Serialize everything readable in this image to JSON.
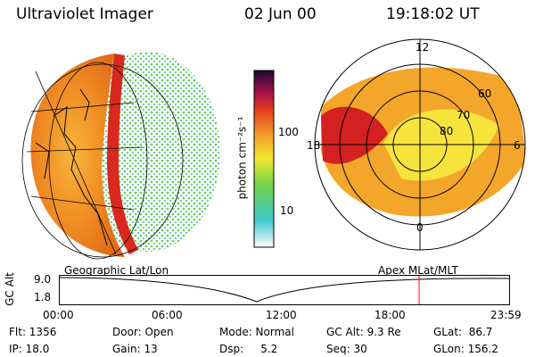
{
  "header": {
    "instrument": "Ultraviolet Imager",
    "date": "02 Jun 00",
    "time": "19:18:02 UT"
  },
  "left_panel": {
    "caption": "Geographic Lat/Lon"
  },
  "right_panel": {
    "caption": "Apex MLat/MLT",
    "mlt_labels": [
      "12",
      "18",
      "6",
      "0"
    ],
    "mlat_labels": [
      "60",
      "70",
      "80"
    ]
  },
  "colorbar": {
    "label": "photon cm⁻²s⁻¹",
    "ticks": [
      "100",
      "10"
    ]
  },
  "orbit_plot": {
    "ylabel": "GC Alt",
    "ymax_label": "9.0",
    "ymin_label": "1.8",
    "x_ticks": [
      "00:00",
      "06:00",
      "12:00",
      "18:00",
      "23:59"
    ]
  },
  "status": {
    "flt": "Flt: 1356",
    "ip": "IP: 18.0",
    "door": "Door: Open",
    "gain": "Gain: 13",
    "mode": "Mode: Normal",
    "dsp": "Dsp:     5.2",
    "gc_alt": "GC Alt: 9.3 Re",
    "seq": "Seq: 30",
    "glat": "GLat:  86.7",
    "glon": "GLon: 156.2"
  },
  "colors": {
    "orange": "#f5a623",
    "red": "#cc1a1a",
    "green": "#5ad13a",
    "marker": "#ff0000"
  }
}
